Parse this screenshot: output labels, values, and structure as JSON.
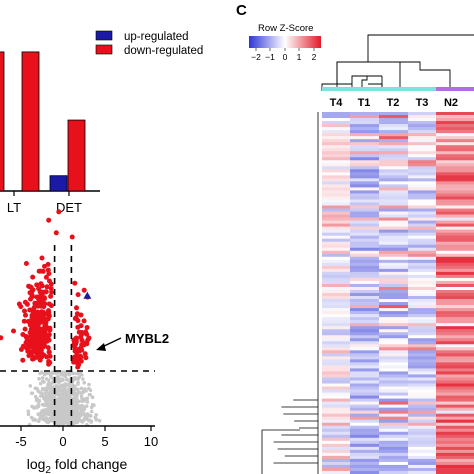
{
  "panel_c_label": "C",
  "chart_data": [
    {
      "type": "bar",
      "categories": [
        "ALT",
        "DET"
      ],
      "category_labels_visible": [
        "LT",
        "DET"
      ],
      "series": [
        {
          "name": "up-regulated",
          "color": "#1a1aa6",
          "values": [
            null,
            2.2
          ]
        },
        {
          "name": "down-regulated",
          "color": "#e8111b",
          "values": [
            20,
            10.2
          ]
        }
      ],
      "legend_placement": "top-right",
      "ylim": [
        0,
        22
      ]
    },
    {
      "type": "scatter",
      "xlabel": "log2 fold change",
      "xlabel_parts": {
        "base": "log",
        "sub": "2",
        "rest": " fold change"
      },
      "x_ticks": [
        "-5",
        "0",
        "5",
        "10"
      ],
      "xlim": [
        -9.3,
        10
      ],
      "ylim": [
        0,
        10
      ],
      "threshold_x": [
        -1,
        1
      ],
      "threshold_y": 1.3,
      "highlight": {
        "name": "MYBL2",
        "x": 2.9,
        "y": 3.1,
        "color": "#1a1aa6"
      },
      "significant_color": "#e8111b",
      "background_color": "#c8c8c8"
    },
    {
      "type": "heatmap",
      "colorkey_title": "Row Z-Score",
      "colorkey_ticks": [
        "−2",
        "−1",
        "0",
        "1",
        "2"
      ],
      "colorkey_range": [
        -2.5,
        2.5
      ],
      "columns": [
        "T4",
        "T1",
        "T2",
        "T3",
        "N2"
      ],
      "column_groups": [
        {
          "name": "T",
          "color": "#7fe0dc",
          "columns": [
            "T4",
            "T1",
            "T2",
            "T3"
          ]
        },
        {
          "name": "N",
          "color": "#b56be0",
          "columns": [
            "N2"
          ]
        }
      ],
      "colors": {
        "low": "#2f35d8",
        "mid": "#ffffff",
        "high": "#e21a2a"
      }
    }
  ]
}
